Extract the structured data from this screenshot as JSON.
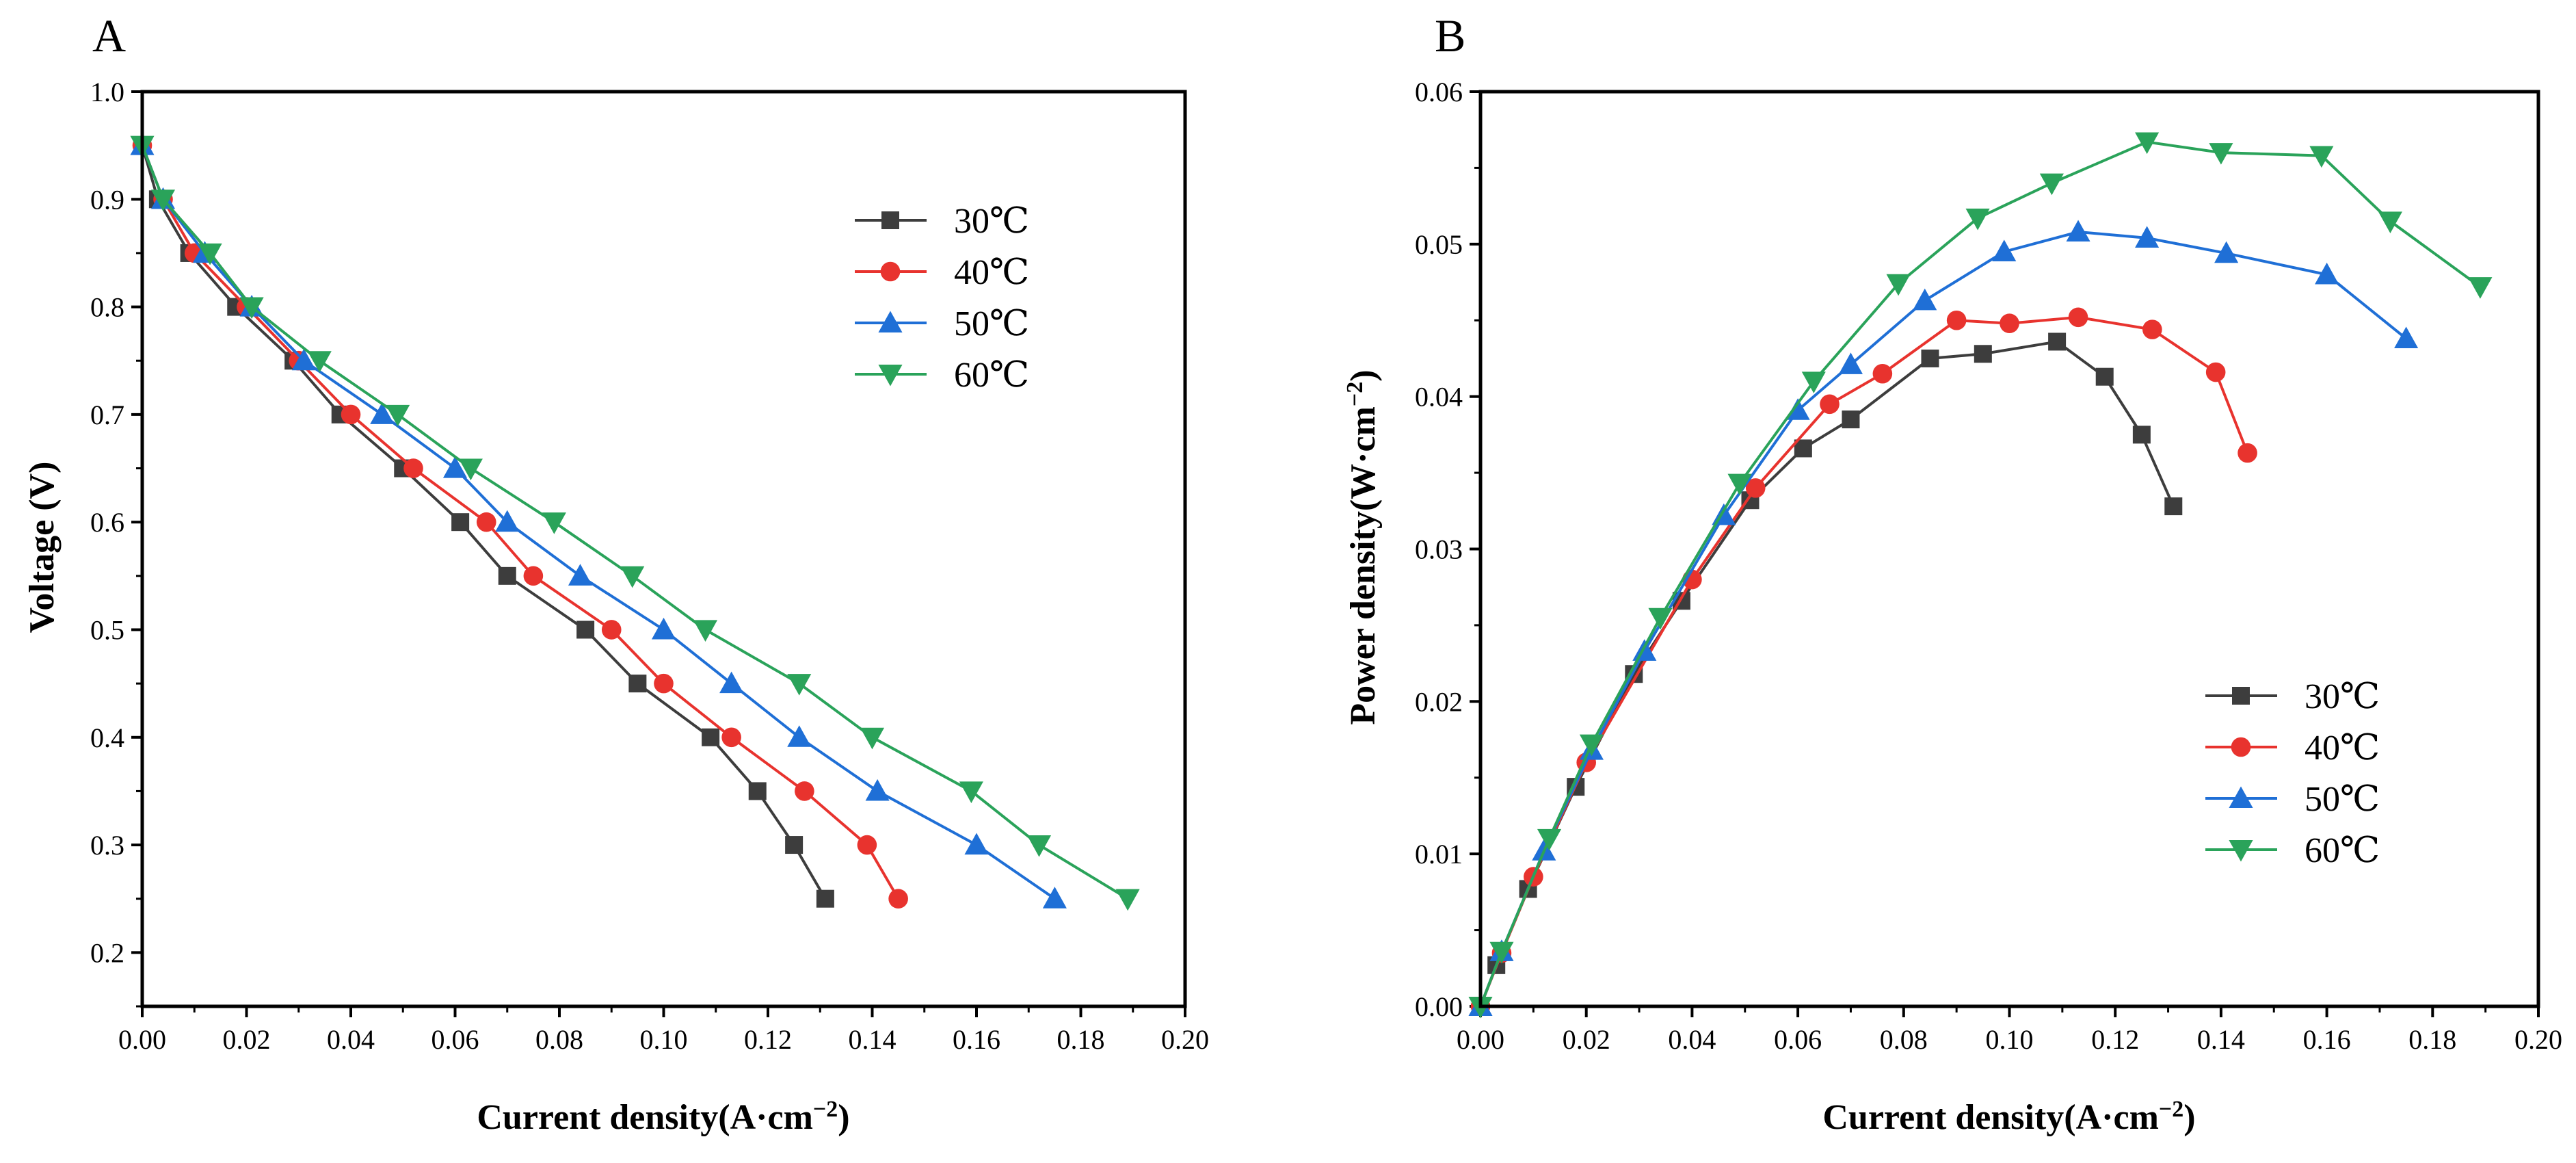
{
  "chart_data": [
    {
      "panel": "A",
      "type": "line",
      "xlabel": "Current density(A·cm",
      "xlabel_sup": "−2",
      "xlabel_end": ")",
      "ylabel": "Voltage (V)",
      "xlim": [
        0,
        0.2
      ],
      "ylim": [
        0.15,
        1.0
      ],
      "xticks": [
        "0.00",
        "0.02",
        "0.04",
        "0.06",
        "0.08",
        "0.10",
        "0.12",
        "0.14",
        "0.16",
        "0.18",
        "0.20"
      ],
      "yticks": [
        "0.2",
        "0.3",
        "0.4",
        "0.5",
        "0.6",
        "0.7",
        "0.8",
        "0.9",
        "1.0"
      ],
      "legend_position": "top-right",
      "series": [
        {
          "name": "30℃",
          "color": "#3d3d3d",
          "marker": "square",
          "x": [
            0.0,
            0.003,
            0.009,
            0.018,
            0.029,
            0.038,
            0.05,
            0.061,
            0.07,
            0.085,
            0.095,
            0.109,
            0.118,
            0.125,
            0.131
          ],
          "y": [
            0.95,
            0.9,
            0.85,
            0.8,
            0.75,
            0.7,
            0.65,
            0.6,
            0.55,
            0.5,
            0.45,
            0.4,
            0.35,
            0.3,
            0.25
          ]
        },
        {
          "name": "40℃",
          "color": "#e8332e",
          "marker": "circle",
          "x": [
            0.0,
            0.004,
            0.01,
            0.02,
            0.03,
            0.04,
            0.052,
            0.066,
            0.075,
            0.09,
            0.1,
            0.113,
            0.127,
            0.139,
            0.145
          ],
          "y": [
            0.95,
            0.9,
            0.85,
            0.8,
            0.75,
            0.7,
            0.65,
            0.6,
            0.55,
            0.5,
            0.45,
            0.4,
            0.35,
            0.3,
            0.25
          ]
        },
        {
          "name": "50℃",
          "color": "#1f6fd6",
          "marker": "triangle-up",
          "x": [
            0.0,
            0.004,
            0.012,
            0.021,
            0.031,
            0.046,
            0.06,
            0.07,
            0.084,
            0.1,
            0.113,
            0.126,
            0.141,
            0.16,
            0.175
          ],
          "y": [
            0.95,
            0.9,
            0.85,
            0.8,
            0.75,
            0.7,
            0.65,
            0.6,
            0.55,
            0.5,
            0.45,
            0.4,
            0.35,
            0.3,
            0.25
          ]
        },
        {
          "name": "60℃",
          "color": "#2aa35a",
          "marker": "triangle-down",
          "x": [
            0.0,
            0.004,
            0.013,
            0.021,
            0.034,
            0.049,
            0.063,
            0.079,
            0.094,
            0.108,
            0.126,
            0.14,
            0.159,
            0.172,
            0.189
          ],
          "y": [
            0.95,
            0.9,
            0.85,
            0.8,
            0.75,
            0.7,
            0.65,
            0.6,
            0.55,
            0.5,
            0.45,
            0.4,
            0.35,
            0.3,
            0.25
          ]
        }
      ]
    },
    {
      "panel": "B",
      "type": "line",
      "xlabel": "Current density(A·cm",
      "xlabel_sup": "−2",
      "xlabel_end": ")",
      "ylabel": "Power density(W·cm",
      "ylabel_sup": "−2",
      "ylabel_end": ")",
      "xlim": [
        0,
        0.2
      ],
      "ylim": [
        0,
        0.06
      ],
      "xticks": [
        "0.00",
        "0.02",
        "0.04",
        "0.06",
        "0.08",
        "0.10",
        "0.12",
        "0.14",
        "0.16",
        "0.18",
        "0.20"
      ],
      "yticks": [
        "0.00",
        "0.01",
        "0.02",
        "0.03",
        "0.04",
        "0.05",
        "0.06"
      ],
      "legend_position": "bottom-right",
      "series": [
        {
          "name": "30℃",
          "color": "#3d3d3d",
          "marker": "square",
          "x": [
            0.0,
            0.003,
            0.009,
            0.018,
            0.029,
            0.038,
            0.051,
            0.061,
            0.07,
            0.085,
            0.095,
            0.109,
            0.118,
            0.125,
            0.131
          ],
          "y": [
            0.0,
            0.0027,
            0.0077,
            0.0144,
            0.0218,
            0.0266,
            0.0332,
            0.0366,
            0.0385,
            0.0425,
            0.0428,
            0.0436,
            0.0413,
            0.0375,
            0.0328
          ]
        },
        {
          "name": "40℃",
          "color": "#e8332e",
          "marker": "circle",
          "x": [
            0.0,
            0.004,
            0.01,
            0.02,
            0.04,
            0.052,
            0.066,
            0.076,
            0.09,
            0.1,
            0.113,
            0.127,
            0.139,
            0.145
          ],
          "y": [
            0.0,
            0.0035,
            0.0085,
            0.016,
            0.028,
            0.034,
            0.0395,
            0.0415,
            0.045,
            0.0448,
            0.0452,
            0.0444,
            0.0416,
            0.0363
          ]
        },
        {
          "name": "50℃",
          "color": "#1f6fd6",
          "marker": "triangle-up",
          "x": [
            0.0,
            0.004,
            0.012,
            0.021,
            0.031,
            0.046,
            0.06,
            0.07,
            0.084,
            0.099,
            0.113,
            0.126,
            0.141,
            0.16,
            0.175
          ],
          "y": [
            0.0,
            0.0036,
            0.0102,
            0.0168,
            0.0233,
            0.0322,
            0.0391,
            0.0421,
            0.0463,
            0.0495,
            0.0508,
            0.0504,
            0.0494,
            0.048,
            0.0438
          ]
        },
        {
          "name": "60℃",
          "color": "#2aa35a",
          "marker": "triangle-down",
          "x": [
            0.0,
            0.004,
            0.013,
            0.021,
            0.034,
            0.049,
            0.063,
            0.079,
            0.094,
            0.108,
            0.126,
            0.14,
            0.159,
            0.172,
            0.189
          ],
          "y": [
            0.0,
            0.0036,
            0.011,
            0.0172,
            0.0255,
            0.0343,
            0.041,
            0.0474,
            0.0517,
            0.054,
            0.0567,
            0.056,
            0.0558,
            0.0515,
            0.0472
          ]
        }
      ]
    }
  ]
}
